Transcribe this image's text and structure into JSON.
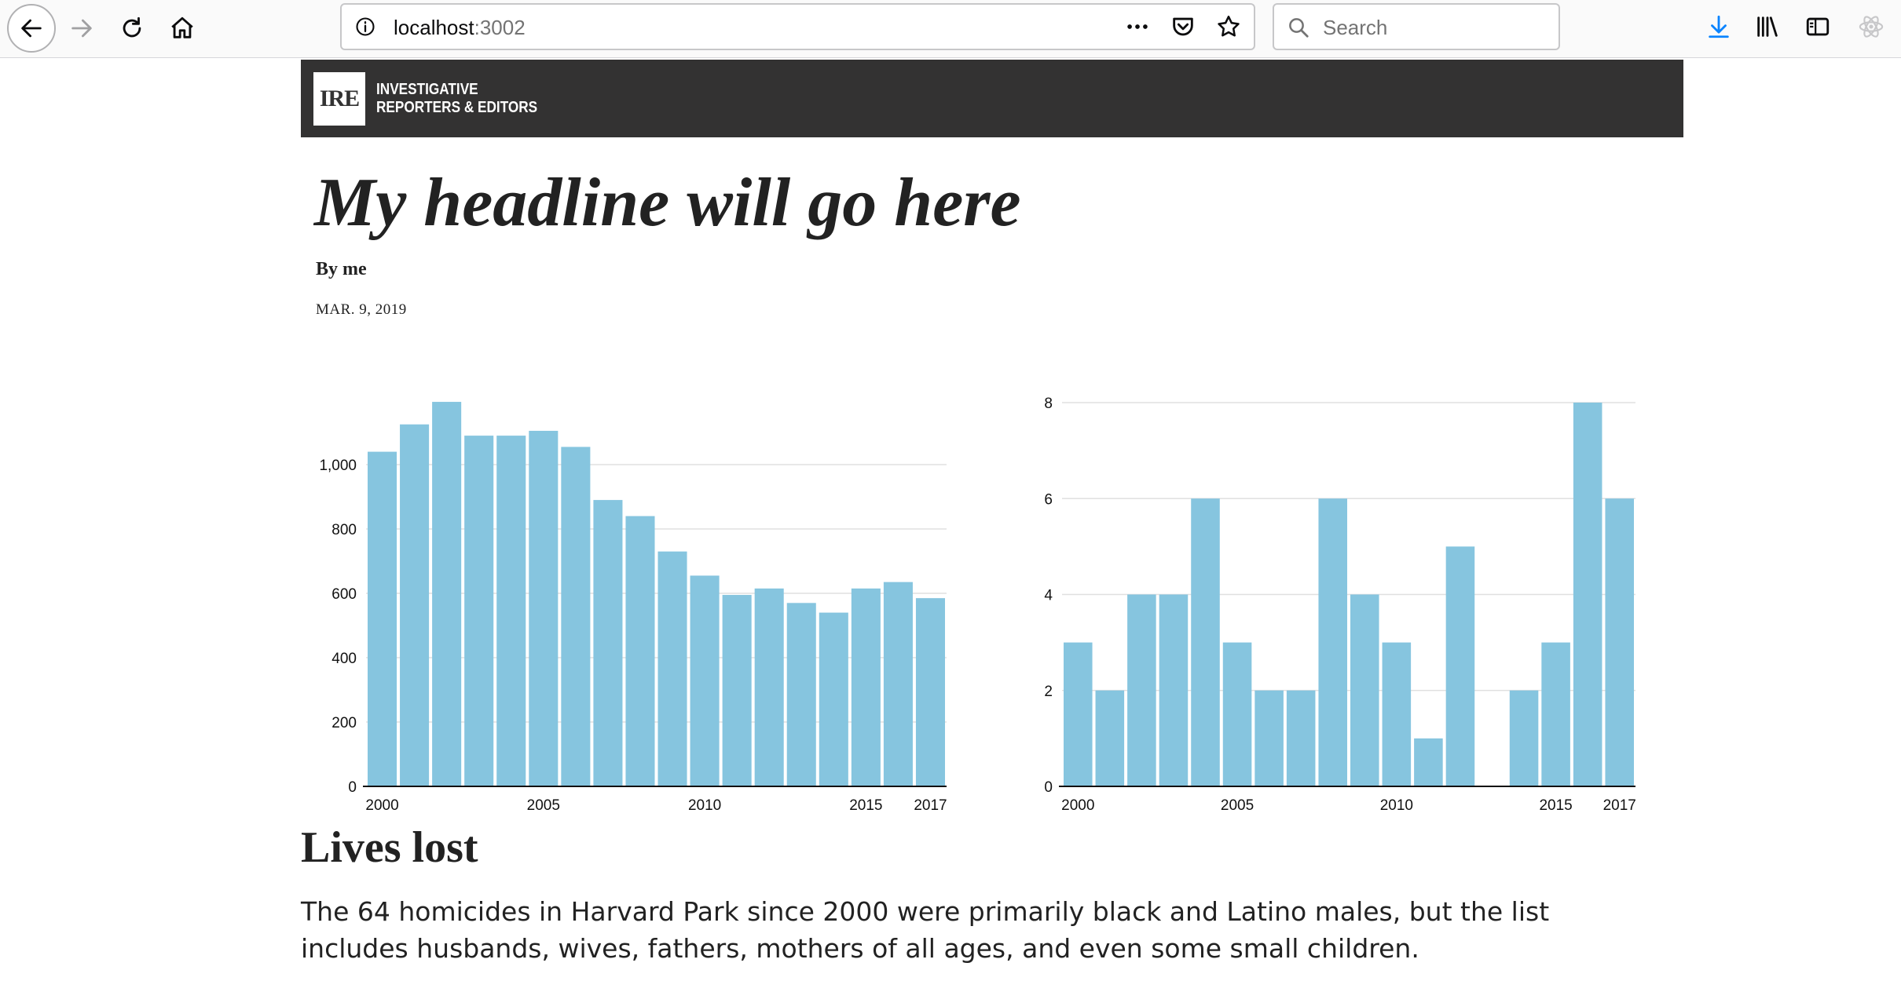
{
  "browser": {
    "url_host": "localhost",
    "url_port": ":3002",
    "search_placeholder": "Search"
  },
  "site": {
    "logo_mark": "IRE",
    "logo_line1": "INVESTIGATIVE",
    "logo_line2": "REPORTERS & EDITORS"
  },
  "article": {
    "headline": "My headline will go here",
    "byline": "By me",
    "date": "MAR. 9, 2019",
    "section_title": "Lives lost",
    "body": "The 64 homicides in Harvard Park since 2000 were primarily black and Latino males, but the list includes husbands, wives, fathers, mothers of all ages, and even some small children."
  },
  "colors": {
    "bar": "#86c5df",
    "header_bg": "#333232"
  },
  "chart_data": [
    {
      "type": "bar",
      "categories": [
        2000,
        2001,
        2002,
        2003,
        2004,
        2005,
        2006,
        2007,
        2008,
        2009,
        2010,
        2011,
        2012,
        2013,
        2014,
        2015,
        2016,
        2017
      ],
      "values": [
        1040,
        1125,
        1195,
        1090,
        1090,
        1105,
        1055,
        890,
        840,
        730,
        655,
        595,
        615,
        570,
        540,
        615,
        635,
        585
      ],
      "xticks": [
        2000,
        2005,
        2010,
        2015,
        2017
      ],
      "yticks": [
        0,
        200,
        400,
        600,
        800,
        1000
      ],
      "ytick_labels": [
        "0",
        "200",
        "400",
        "600",
        "800",
        "1,000"
      ],
      "ylim": [
        0,
        1200
      ],
      "grid": true
    },
    {
      "type": "bar",
      "categories": [
        2000,
        2001,
        2002,
        2003,
        2004,
        2005,
        2006,
        2007,
        2008,
        2009,
        2010,
        2011,
        2012,
        2013,
        2014,
        2015,
        2016,
        2017
      ],
      "values": [
        3,
        2,
        4,
        4,
        6,
        3,
        2,
        2,
        6,
        4,
        3,
        1,
        5,
        0,
        2,
        3,
        8,
        6
      ],
      "xticks": [
        2000,
        2005,
        2010,
        2015,
        2017
      ],
      "yticks": [
        0,
        2,
        4,
        6,
        8
      ],
      "ytick_labels": [
        "0",
        "2",
        "4",
        "6",
        "8"
      ],
      "ylim": [
        0,
        8
      ],
      "grid": true
    }
  ]
}
